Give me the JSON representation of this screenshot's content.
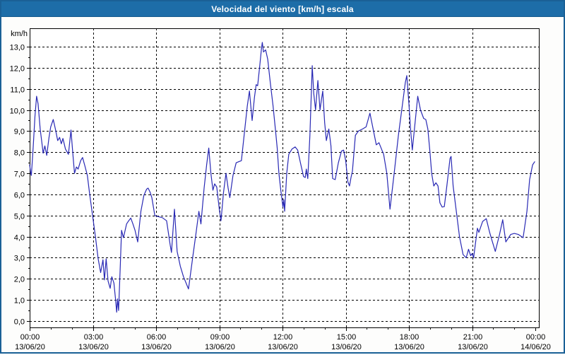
{
  "window": {
    "title": "Velocidad del viento [km/h] escala"
  },
  "colors": {
    "titlebar": "#1d6da8",
    "titlebar_text": "#ffffff",
    "frame": "#1a6096",
    "plot_background": "#ffffff",
    "axis": "#000000",
    "grid": "#000000",
    "line": "#2828b4",
    "label_text": "#000000"
  },
  "chart_data": {
    "type": "line",
    "title": "Velocidad del viento [km/h] escala",
    "ylabel": "km/h",
    "ylim": [
      0,
      13
    ],
    "y_tick_step": 1,
    "y_ticks": [
      {
        "value": 13,
        "label": "13,0"
      },
      {
        "value": 12,
        "label": "12,0"
      },
      {
        "value": 11,
        "label": "11,0"
      },
      {
        "value": 10,
        "label": "10,0"
      },
      {
        "value": 9,
        "label": "9,0"
      },
      {
        "value": 8,
        "label": "8,0"
      },
      {
        "value": 7,
        "label": "7,0"
      },
      {
        "value": 6,
        "label": "6,0"
      },
      {
        "value": 5,
        "label": "5,0"
      },
      {
        "value": 4,
        "label": "4,0"
      },
      {
        "value": 3,
        "label": "3,0"
      },
      {
        "value": 2,
        "label": "2,0"
      },
      {
        "value": 1,
        "label": "1,0"
      },
      {
        "value": 0,
        "label": "0,0"
      }
    ],
    "x_range_hours": [
      0,
      24
    ],
    "x_major_step_hours": 3,
    "x_minor_step_hours": 1,
    "x_ticks": [
      {
        "hour": 0,
        "time": "00:00",
        "date": "13/06/20"
      },
      {
        "hour": 3,
        "time": "03:00",
        "date": "13/06/20"
      },
      {
        "hour": 6,
        "time": "06:00",
        "date": "13/06/20"
      },
      {
        "hour": 9,
        "time": "09:00",
        "date": "13/06/20"
      },
      {
        "hour": 12,
        "time": "12:00",
        "date": "13/06/20"
      },
      {
        "hour": 15,
        "time": "15:00",
        "date": "13/06/20"
      },
      {
        "hour": 18,
        "time": "18:00",
        "date": "13/06/20"
      },
      {
        "hour": 21,
        "time": "21:00",
        "date": "13/06/20"
      },
      {
        "hour": 24,
        "time": "00:00",
        "date": "14/06/20"
      }
    ],
    "grid": "dashed",
    "legend_position": "none",
    "series": [
      {
        "name": "Velocidad del viento",
        "points": [
          [
            0.0,
            7.4
          ],
          [
            0.05,
            7.0
          ],
          [
            0.08,
            6.9
          ],
          [
            0.17,
            8.3
          ],
          [
            0.25,
            9.7
          ],
          [
            0.33,
            10.65
          ],
          [
            0.4,
            10.3
          ],
          [
            0.5,
            9.1
          ],
          [
            0.58,
            8.45
          ],
          [
            0.64,
            7.95
          ],
          [
            0.72,
            8.3
          ],
          [
            0.81,
            7.85
          ],
          [
            0.92,
            8.7
          ],
          [
            1.0,
            9.2
          ],
          [
            1.12,
            9.55
          ],
          [
            1.22,
            9.1
          ],
          [
            1.33,
            8.55
          ],
          [
            1.42,
            8.7
          ],
          [
            1.5,
            8.4
          ],
          [
            1.58,
            8.65
          ],
          [
            1.7,
            8.15
          ],
          [
            1.84,
            7.9
          ],
          [
            1.96,
            9.05
          ],
          [
            2.05,
            7.9
          ],
          [
            2.13,
            7.0
          ],
          [
            2.22,
            7.3
          ],
          [
            2.3,
            7.2
          ],
          [
            2.42,
            7.6
          ],
          [
            2.51,
            7.75
          ],
          [
            2.62,
            7.35
          ],
          [
            2.74,
            6.9
          ],
          [
            2.85,
            6.0
          ],
          [
            3.0,
            4.9
          ],
          [
            3.12,
            4.0
          ],
          [
            3.25,
            2.95
          ],
          [
            3.37,
            2.3
          ],
          [
            3.48,
            2.9
          ],
          [
            3.55,
            1.95
          ],
          [
            3.63,
            2.95
          ],
          [
            3.72,
            1.9
          ],
          [
            3.82,
            1.55
          ],
          [
            3.9,
            2.1
          ],
          [
            4.0,
            1.8
          ],
          [
            4.08,
            1.0
          ],
          [
            4.13,
            0.42
          ],
          [
            4.17,
            1.05
          ],
          [
            4.22,
            0.5
          ],
          [
            4.3,
            2.6
          ],
          [
            4.36,
            4.3
          ],
          [
            4.45,
            3.95
          ],
          [
            4.6,
            4.6
          ],
          [
            4.7,
            4.75
          ],
          [
            4.8,
            4.88
          ],
          [
            4.9,
            4.6
          ],
          [
            5.0,
            4.3
          ],
          [
            5.13,
            3.75
          ],
          [
            5.28,
            5.2
          ],
          [
            5.42,
            5.95
          ],
          [
            5.55,
            6.25
          ],
          [
            5.62,
            6.3
          ],
          [
            5.72,
            6.1
          ],
          [
            5.8,
            5.85
          ],
          [
            5.94,
            5.0
          ],
          [
            6.1,
            4.95
          ],
          [
            6.3,
            4.9
          ],
          [
            6.5,
            4.75
          ],
          [
            6.67,
            3.6
          ],
          [
            6.73,
            3.25
          ],
          [
            6.87,
            5.3
          ],
          [
            7.0,
            3.3
          ],
          [
            7.15,
            2.6
          ],
          [
            7.3,
            2.1
          ],
          [
            7.54,
            1.52
          ],
          [
            7.75,
            3.1
          ],
          [
            7.9,
            4.2
          ],
          [
            8.03,
            5.2
          ],
          [
            8.13,
            4.6
          ],
          [
            8.28,
            6.3
          ],
          [
            8.4,
            7.4
          ],
          [
            8.5,
            8.2
          ],
          [
            8.6,
            7.0
          ],
          [
            8.7,
            6.2
          ],
          [
            8.78,
            6.5
          ],
          [
            8.88,
            6.35
          ],
          [
            9.0,
            5.3
          ],
          [
            9.08,
            4.75
          ],
          [
            9.2,
            6.1
          ],
          [
            9.32,
            7.0
          ],
          [
            9.42,
            6.3
          ],
          [
            9.5,
            5.85
          ],
          [
            9.65,
            6.9
          ],
          [
            9.8,
            7.5
          ],
          [
            9.92,
            7.55
          ],
          [
            10.05,
            7.6
          ],
          [
            10.2,
            9.0
          ],
          [
            10.33,
            10.2
          ],
          [
            10.43,
            10.9
          ],
          [
            10.56,
            9.5
          ],
          [
            10.67,
            10.6
          ],
          [
            10.75,
            11.2
          ],
          [
            10.82,
            11.15
          ],
          [
            10.92,
            12.1
          ],
          [
            11.0,
            12.9
          ],
          [
            11.04,
            13.2
          ],
          [
            11.1,
            12.75
          ],
          [
            11.2,
            12.85
          ],
          [
            11.3,
            12.4
          ],
          [
            11.42,
            11.3
          ],
          [
            11.55,
            10.2
          ],
          [
            11.67,
            9.0
          ],
          [
            11.75,
            8.2
          ],
          [
            11.83,
            7.0
          ],
          [
            11.92,
            6.2
          ],
          [
            12.02,
            5.4
          ],
          [
            12.06,
            5.75
          ],
          [
            12.1,
            5.2
          ],
          [
            12.2,
            7.0
          ],
          [
            12.3,
            7.9
          ],
          [
            12.45,
            8.15
          ],
          [
            12.6,
            8.25
          ],
          [
            12.72,
            8.1
          ],
          [
            12.85,
            7.5
          ],
          [
            13.0,
            6.85
          ],
          [
            13.08,
            6.8
          ],
          [
            13.13,
            7.2
          ],
          [
            13.2,
            6.75
          ],
          [
            13.3,
            8.8
          ],
          [
            13.41,
            12.1
          ],
          [
            13.48,
            10.8
          ],
          [
            13.57,
            10.0
          ],
          [
            13.68,
            11.4
          ],
          [
            13.78,
            10.0
          ],
          [
            13.85,
            10.5
          ],
          [
            13.91,
            10.9
          ],
          [
            14.0,
            9.4
          ],
          [
            14.08,
            8.55
          ],
          [
            14.2,
            9.1
          ],
          [
            14.3,
            8.3
          ],
          [
            14.38,
            6.75
          ],
          [
            14.5,
            6.7
          ],
          [
            14.65,
            7.5
          ],
          [
            14.8,
            8.05
          ],
          [
            14.9,
            8.1
          ],
          [
            15.0,
            7.6
          ],
          [
            15.1,
            6.6
          ],
          [
            15.18,
            6.4
          ],
          [
            15.25,
            6.8
          ],
          [
            15.32,
            7.1
          ],
          [
            15.46,
            8.8
          ],
          [
            15.6,
            9.0
          ],
          [
            15.8,
            9.1
          ],
          [
            15.97,
            9.2
          ],
          [
            16.15,
            9.85
          ],
          [
            16.3,
            9.1
          ],
          [
            16.45,
            8.35
          ],
          [
            16.58,
            8.45
          ],
          [
            16.7,
            8.15
          ],
          [
            16.8,
            7.9
          ],
          [
            16.95,
            7.0
          ],
          [
            17.1,
            5.3
          ],
          [
            17.3,
            7.0
          ],
          [
            17.5,
            8.8
          ],
          [
            17.7,
            10.3
          ],
          [
            17.83,
            11.3
          ],
          [
            17.9,
            11.63
          ],
          [
            18.0,
            10.3
          ],
          [
            18.08,
            9.05
          ],
          [
            18.16,
            8.1
          ],
          [
            18.42,
            10.65
          ],
          [
            18.55,
            10.0
          ],
          [
            18.7,
            9.6
          ],
          [
            18.8,
            9.55
          ],
          [
            18.9,
            9.1
          ],
          [
            19.0,
            8.0
          ],
          [
            19.08,
            7.0
          ],
          [
            19.18,
            6.4
          ],
          [
            19.28,
            6.55
          ],
          [
            19.38,
            6.4
          ],
          [
            19.47,
            5.6
          ],
          [
            19.58,
            5.4
          ],
          [
            19.68,
            5.42
          ],
          [
            19.8,
            6.4
          ],
          [
            19.95,
            7.7
          ],
          [
            20.0,
            7.8
          ],
          [
            20.1,
            6.4
          ],
          [
            20.25,
            5.2
          ],
          [
            20.4,
            4.0
          ],
          [
            20.57,
            3.15
          ],
          [
            20.72,
            3.0
          ],
          [
            20.83,
            3.4
          ],
          [
            20.93,
            3.1
          ],
          [
            21.0,
            3.2
          ],
          [
            21.07,
            3.0
          ],
          [
            21.25,
            4.4
          ],
          [
            21.32,
            4.2
          ],
          [
            21.5,
            4.72
          ],
          [
            21.67,
            4.85
          ],
          [
            21.83,
            4.2
          ],
          [
            21.95,
            3.8
          ],
          [
            22.1,
            3.3
          ],
          [
            22.3,
            4.1
          ],
          [
            22.45,
            4.8
          ],
          [
            22.6,
            3.75
          ],
          [
            22.83,
            4.1
          ],
          [
            23.0,
            4.15
          ],
          [
            23.2,
            4.1
          ],
          [
            23.42,
            3.95
          ],
          [
            23.6,
            5.2
          ],
          [
            23.73,
            6.7
          ],
          [
            23.87,
            7.4
          ],
          [
            23.97,
            7.55
          ]
        ]
      }
    ]
  }
}
